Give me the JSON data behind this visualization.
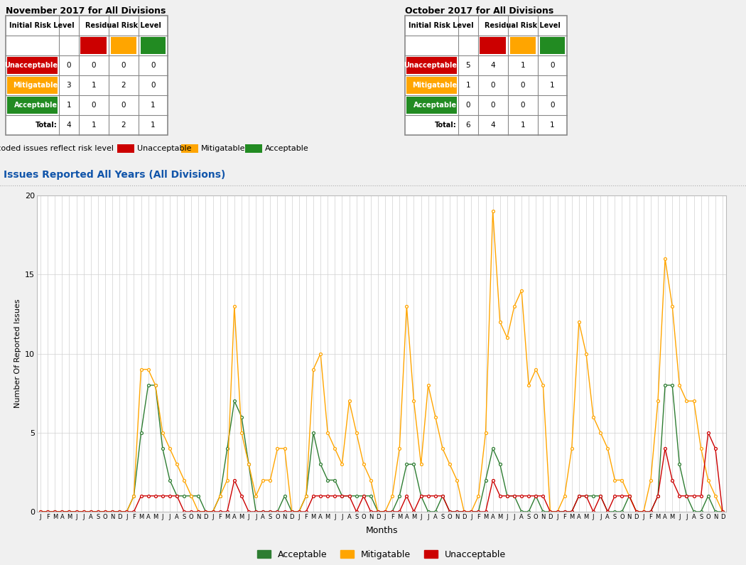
{
  "nov_title": "November 2017 for All Divisions",
  "oct_title": "October 2017 for All Divisions",
  "nov_table": {
    "unacceptable": [
      0,
      0,
      0,
      0
    ],
    "mitigatable": [
      3,
      1,
      2,
      0
    ],
    "acceptable": [
      1,
      0,
      0,
      1
    ],
    "totals": [
      4,
      1,
      2,
      1
    ]
  },
  "oct_table": {
    "unacceptable": [
      5,
      4,
      1,
      0
    ],
    "mitigatable": [
      1,
      0,
      0,
      1
    ],
    "acceptable": [
      0,
      0,
      0,
      0
    ],
    "totals": [
      6,
      4,
      1,
      1
    ]
  },
  "chart_title": "Issues Reported All Years (All Divisions)",
  "ylabel": "Number Of Reported Issues",
  "xlabel": "Months",
  "ylim": [
    0,
    20
  ],
  "month_labels": [
    "J",
    "F",
    "M",
    "A",
    "M",
    "J",
    "J",
    "A",
    "S",
    "O",
    "N",
    "D",
    "J",
    "F",
    "M",
    "A",
    "M",
    "J",
    "J",
    "A",
    "S",
    "O",
    "N",
    "D",
    "J",
    "F",
    "M",
    "A",
    "M",
    "J",
    "J",
    "A",
    "S",
    "O",
    "N",
    "D",
    "J",
    "F",
    "M",
    "A",
    "M",
    "J",
    "J",
    "A",
    "S",
    "O",
    "N",
    "D",
    "J",
    "F",
    "M",
    "A",
    "M",
    "J",
    "J",
    "A",
    "S",
    "O",
    "N",
    "D",
    "J",
    "F",
    "M",
    "A",
    "M",
    "J",
    "J",
    "A",
    "S",
    "O",
    "N",
    "D",
    "J",
    "F",
    "M",
    "A",
    "M",
    "J",
    "J",
    "A",
    "S",
    "O",
    "N",
    "D",
    "J",
    "F",
    "M",
    "A",
    "M",
    "J",
    "J",
    "A",
    "S",
    "O",
    "N",
    "D"
  ],
  "acceptable": [
    0,
    0,
    0,
    0,
    0,
    0,
    0,
    0,
    0,
    0,
    0,
    0,
    0,
    1,
    5,
    8,
    8,
    4,
    2,
    1,
    1,
    1,
    1,
    0,
    0,
    1,
    4,
    7,
    6,
    3,
    0,
    0,
    0,
    0,
    1,
    0,
    0,
    1,
    5,
    3,
    2,
    2,
    1,
    1,
    1,
    1,
    1,
    0,
    0,
    0,
    1,
    3,
    3,
    1,
    0,
    0,
    1,
    0,
    0,
    0,
    0,
    0,
    2,
    4,
    3,
    1,
    1,
    0,
    0,
    1,
    0,
    0,
    0,
    0,
    0,
    1,
    1,
    1,
    1,
    0,
    0,
    0,
    1,
    0,
    0,
    0,
    1,
    8,
    8,
    3,
    1,
    0,
    0,
    1,
    0,
    0
  ],
  "mitigatable": [
    0,
    0,
    0,
    0,
    0,
    0,
    0,
    0,
    0,
    0,
    0,
    0,
    0,
    1,
    9,
    9,
    8,
    5,
    4,
    3,
    2,
    1,
    0,
    0,
    0,
    1,
    2,
    13,
    5,
    3,
    1,
    2,
    2,
    4,
    4,
    0,
    0,
    1,
    9,
    10,
    5,
    4,
    3,
    7,
    5,
    3,
    2,
    0,
    0,
    1,
    4,
    13,
    7,
    3,
    8,
    6,
    4,
    3,
    2,
    0,
    0,
    1,
    5,
    19,
    12,
    11,
    13,
    14,
    8,
    9,
    8,
    0,
    0,
    1,
    4,
    12,
    10,
    6,
    5,
    4,
    2,
    2,
    1,
    0,
    0,
    2,
    7,
    16,
    13,
    8,
    7,
    7,
    4,
    2,
    1,
    0
  ],
  "unacceptable": [
    0,
    0,
    0,
    0,
    0,
    0,
    0,
    0,
    0,
    0,
    0,
    0,
    0,
    0,
    1,
    1,
    1,
    1,
    1,
    1,
    0,
    0,
    0,
    0,
    0,
    0,
    0,
    2,
    1,
    0,
    0,
    0,
    0,
    0,
    0,
    0,
    0,
    0,
    1,
    1,
    1,
    1,
    1,
    1,
    0,
    1,
    0,
    0,
    0,
    0,
    0,
    1,
    0,
    1,
    1,
    1,
    1,
    0,
    0,
    0,
    0,
    0,
    0,
    2,
    1,
    1,
    1,
    1,
    1,
    1,
    1,
    0,
    0,
    0,
    0,
    1,
    1,
    0,
    1,
    0,
    1,
    1,
    1,
    0,
    0,
    0,
    1,
    4,
    2,
    1,
    1,
    1,
    1,
    5,
    4,
    0
  ],
  "color_acceptable": "#2e7d32",
  "color_mitigatable": "#FFA500",
  "color_unacceptable": "#CC0000",
  "bg_color": "#f0f0f0"
}
